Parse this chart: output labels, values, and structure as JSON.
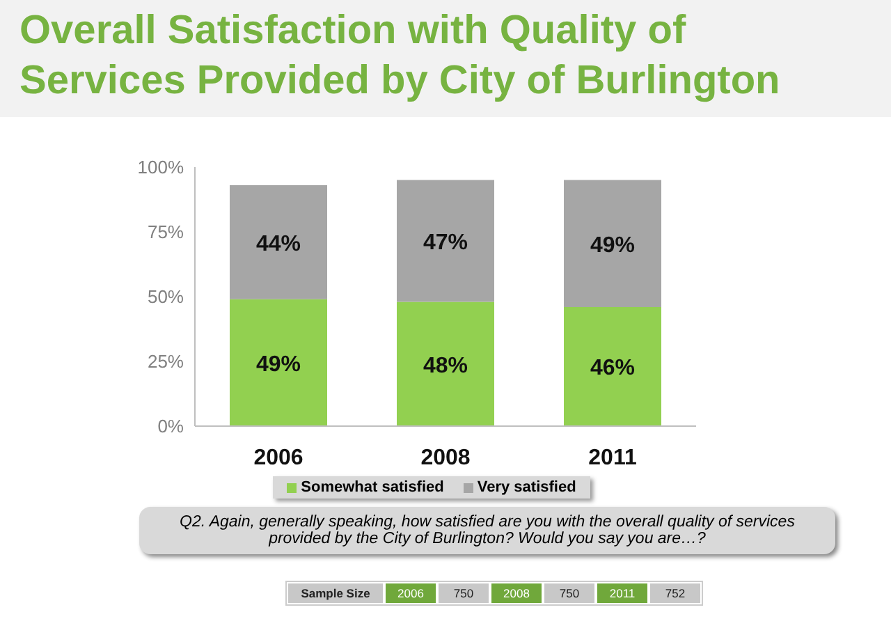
{
  "chart_data": {
    "type": "bar",
    "title": "Overall Satisfaction with Quality of Services Provided by City of Burlington",
    "categories": [
      "2006",
      "2008",
      "2011"
    ],
    "stacked": true,
    "series": [
      {
        "name": "Somewhat satisfied",
        "color": "#92d050",
        "values": [
          49,
          48,
          46
        ],
        "value_labels": [
          "49%",
          "48%",
          "46%"
        ]
      },
      {
        "name": "Very satisfied",
        "color": "#a6a6a6",
        "values": [
          44,
          47,
          49
        ],
        "value_labels": [
          "44%",
          "47%",
          "49%"
        ]
      }
    ],
    "ylim": [
      0,
      100
    ],
    "yticks": [
      {
        "value": 0,
        "label": "0%"
      },
      {
        "value": 25,
        "label": "25%"
      },
      {
        "value": 50,
        "label": "50%"
      },
      {
        "value": 75,
        "label": "75%"
      },
      {
        "value": 100,
        "label": "100%"
      }
    ],
    "grid": false,
    "legend": "bottom",
    "annotations": [
      "Q2. Again, generally speaking, how satisfied are you with the overall quality of services provided by the City of Burlington?  Would you say you are…?",
      "Sample Size",
      "2006",
      "750",
      "2008",
      "750",
      "2011",
      "752"
    ]
  }
}
